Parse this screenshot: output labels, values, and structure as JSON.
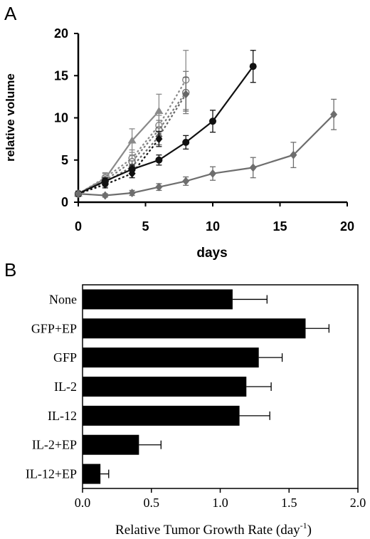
{
  "chart_data": [
    {
      "panel_label": "A",
      "type": "line",
      "xlabel": "days",
      "ylabel": "relative volume",
      "xlim": [
        0,
        20
      ],
      "ylim": [
        0,
        20
      ],
      "xticks": [
        "0",
        "5",
        "10",
        "15",
        "20"
      ],
      "yticks": [
        "0",
        "5",
        "10",
        "15",
        "20"
      ],
      "grid": false,
      "series": [
        {
          "style": "solid",
          "color": "#8a8a8a",
          "marker": "triangle",
          "x": [
            0,
            2,
            4,
            6
          ],
          "y": [
            1.0,
            2.8,
            7.3,
            10.8
          ],
          "err": [
            0.3,
            0.7,
            1.4,
            2.0
          ]
        },
        {
          "style": "dotted",
          "color": "#8a8a8a",
          "marker": "circle-open",
          "x": [
            0,
            2,
            4,
            6,
            8
          ],
          "y": [
            1.0,
            2.9,
            5.2,
            9.1,
            14.5
          ],
          "err": [
            0.3,
            0.5,
            1.0,
            1.2,
            3.5
          ]
        },
        {
          "style": "dotted",
          "color": "#7a7a7a",
          "marker": "circle-open",
          "x": [
            0,
            2,
            4,
            6,
            8
          ],
          "y": [
            1.0,
            2.6,
            4.8,
            8.6,
            13.0
          ],
          "err": [
            0.3,
            0.5,
            0.8,
            1.1,
            2.5
          ]
        },
        {
          "style": "dotted",
          "color": "#666666",
          "marker": "diamond",
          "x": [
            0,
            2,
            4,
            6,
            8
          ],
          "y": [
            1.0,
            2.4,
            4.2,
            7.8,
            12.8
          ],
          "err": [
            0.3,
            0.5,
            0.7,
            1.0,
            2.0
          ]
        },
        {
          "style": "dotted",
          "color": "#111111",
          "marker": "diamond",
          "x": [
            0,
            2,
            4,
            6
          ],
          "y": [
            1.0,
            2.1,
            3.4,
            7.5
          ],
          "err": [
            0.3,
            0.4,
            0.5,
            0.9
          ]
        },
        {
          "style": "solid",
          "color": "#111111",
          "marker": "circle",
          "x": [
            0,
            2,
            4,
            6,
            8,
            10,
            13
          ],
          "y": [
            1.0,
            2.5,
            3.9,
            5.0,
            7.1,
            9.6,
            16.1
          ],
          "err": [
            0.3,
            0.4,
            0.5,
            0.6,
            0.8,
            1.3,
            1.9
          ]
        },
        {
          "style": "solid",
          "color": "#6e6e6e",
          "marker": "diamond",
          "x": [
            0,
            2,
            4,
            6,
            8,
            10,
            13,
            16,
            19
          ],
          "y": [
            1.0,
            0.8,
            1.1,
            1.8,
            2.5,
            3.4,
            4.1,
            5.6,
            10.4
          ],
          "err": [
            0.2,
            0.2,
            0.3,
            0.4,
            0.5,
            0.8,
            1.2,
            1.5,
            1.8
          ]
        }
      ]
    },
    {
      "panel_label": "B",
      "type": "bar",
      "orientation": "horizontal",
      "categories": [
        "None",
        "GFP+EP",
        "GFP",
        "IL-2",
        "IL-12",
        "IL-2+EP",
        "IL-12+EP"
      ],
      "values": [
        1.09,
        1.62,
        1.28,
        1.19,
        1.14,
        0.41,
        0.13
      ],
      "errors": [
        0.25,
        0.17,
        0.17,
        0.18,
        0.22,
        0.16,
        0.06
      ],
      "xlabel": "Relative Tumor Growth Rate (day",
      "xlabel_sup": "-1",
      "xlabel_close": ")",
      "xlim": [
        0,
        2
      ],
      "xticks": [
        "0.0",
        "0.5",
        "1.0",
        "1.5",
        "2.0"
      ],
      "bar_color": "#000000",
      "grid": false
    }
  ]
}
